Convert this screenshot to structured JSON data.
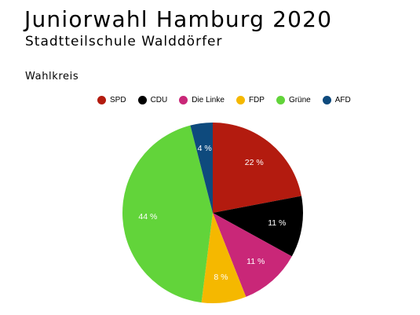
{
  "header": {
    "title": "Juniorwahl Hamburg 2020",
    "subtitle": "Stadtteilschule Walddörfer"
  },
  "section": {
    "label": "Wahlkreis"
  },
  "chart_data": {
    "type": "pie",
    "title": "",
    "legend_position": "top",
    "label_format": "{v} %",
    "slices": [
      {
        "label": "SPD",
        "value": 22,
        "color": "#b31b0f"
      },
      {
        "label": "CDU",
        "value": 11,
        "color": "#000000"
      },
      {
        "label": "Die Linke",
        "value": 11,
        "color": "#c92778"
      },
      {
        "label": "FDP",
        "value": 8,
        "color": "#f5b800"
      },
      {
        "label": "Grüne",
        "value": 44,
        "color": "#62d43a"
      },
      {
        "label": "AFD",
        "value": 4,
        "color": "#0e4a7d"
      }
    ]
  }
}
